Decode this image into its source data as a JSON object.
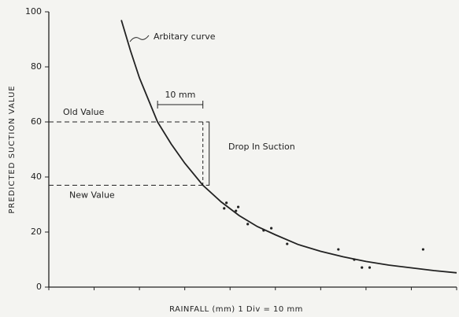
{
  "chart_data": {
    "type": "line",
    "x_label": "RAINFALL (mm)  1 Div = 10 mm",
    "y_label": "PREDICTED SUCTION VALUE",
    "xlim": [
      0,
      90
    ],
    "ylim": [
      0,
      100
    ],
    "xticks": [
      0,
      10,
      20,
      30,
      40,
      50,
      60,
      70,
      80,
      90
    ],
    "yticks": [
      0,
      20,
      40,
      60,
      80,
      100
    ],
    "color": "#222222",
    "curve": {
      "x": [
        16,
        18,
        20,
        22,
        24,
        27,
        30,
        34,
        38,
        42,
        46,
        50,
        55,
        60,
        65,
        70,
        75,
        80,
        85,
        90
      ],
      "y": [
        97,
        86,
        76,
        68,
        60,
        52,
        45,
        37,
        31,
        26,
        22,
        19,
        15.5,
        13,
        11,
        9.3,
        8,
        7,
        6,
        5.2
      ]
    },
    "points": {
      "x": [
        38.7,
        39.2,
        41.3,
        41.8,
        43.9,
        47.4,
        49.1,
        52.6,
        63.9,
        67.4,
        69.1,
        70.8,
        82.6
      ],
      "y": [
        28.6,
        30.6,
        27.7,
        29.1,
        22.9,
        20.6,
        21.4,
        15.7,
        13.7,
        10,
        7.1,
        7.1,
        13.7
      ]
    },
    "old_value": {
      "x": 24,
      "y": 60,
      "label": "Old Value"
    },
    "new_value": {
      "x": 34,
      "y": 37,
      "label": "New Value"
    },
    "annotations": {
      "curve_label": "Arbitary curve",
      "interval_label": "10 mm",
      "drop_label": "Drop In Suction"
    }
  }
}
